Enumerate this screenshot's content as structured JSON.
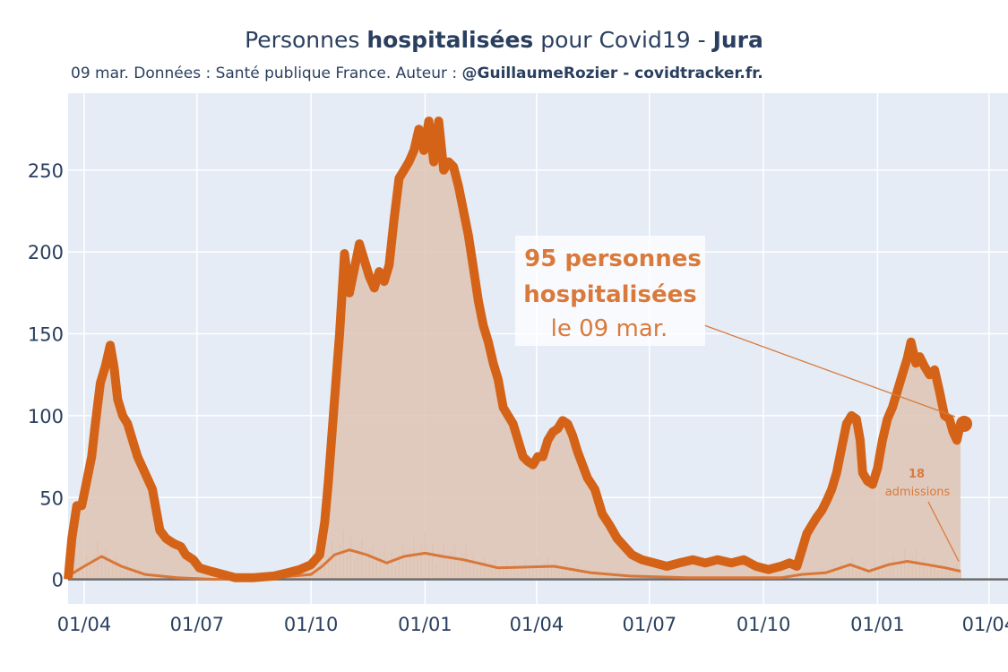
{
  "title": {
    "prefix": "Personnes ",
    "bold1": "hospitalisées",
    "middle": " pour Covid19 - ",
    "bold2": "Jura"
  },
  "subtitle": {
    "text": "09 mar. Données : Santé publique France. Auteur : ",
    "bold": "@GuillaumeRozier - covidtracker.fr."
  },
  "annotation": {
    "line1": "95 personnes",
    "line2": "hospitalisées",
    "line3": "le 09 mar."
  },
  "admissions_annotation": {
    "value": "18",
    "label": "admissions"
  },
  "colors": {
    "main_line": "#d46318",
    "fill": "#dfc4b3",
    "admissions": "#d9773a",
    "background": "#e5ecf6",
    "annotation_text": "#d97a3c"
  },
  "chart_data": {
    "type": "area",
    "xlabel": "",
    "ylabel": "",
    "ylim": [
      -15,
      297
    ],
    "xlim": [
      "2020-03-19",
      "2022-04-17"
    ],
    "yticks": [
      0,
      50,
      100,
      150,
      200,
      250
    ],
    "xtick_labels": [
      "01/04",
      "01/07",
      "01/10",
      "01/01",
      "01/04",
      "01/07",
      "01/10",
      "01/01",
      "01/04"
    ],
    "xtick_dates": [
      "2020-04-01",
      "2020-07-01",
      "2020-10-01",
      "2021-01-01",
      "2021-04-01",
      "2021-07-01",
      "2021-10-01",
      "2022-01-01",
      "2022-04-01"
    ],
    "grid": true,
    "series": [
      {
        "role": "hospitalises",
        "points": [
          [
            "2020-03-19",
            0
          ],
          [
            "2020-03-22",
            25
          ],
          [
            "2020-03-26",
            45
          ],
          [
            "2020-03-30",
            45
          ],
          [
            "2020-04-03",
            60
          ],
          [
            "2020-04-07",
            75
          ],
          [
            "2020-04-10",
            95
          ],
          [
            "2020-04-14",
            120
          ],
          [
            "2020-04-18",
            130
          ],
          [
            "2020-04-22",
            143
          ],
          [
            "2020-04-25",
            130
          ],
          [
            "2020-04-28",
            110
          ],
          [
            "2020-05-02",
            100
          ],
          [
            "2020-05-06",
            95
          ],
          [
            "2020-05-10",
            85
          ],
          [
            "2020-05-14",
            75
          ],
          [
            "2020-05-20",
            65
          ],
          [
            "2020-05-26",
            55
          ],
          [
            "2020-06-01",
            30
          ],
          [
            "2020-06-06",
            25
          ],
          [
            "2020-06-12",
            22
          ],
          [
            "2020-06-18",
            20
          ],
          [
            "2020-06-22",
            15
          ],
          [
            "2020-06-28",
            12
          ],
          [
            "2020-07-03",
            7
          ],
          [
            "2020-07-12",
            5
          ],
          [
            "2020-07-22",
            3
          ],
          [
            "2020-08-01",
            1
          ],
          [
            "2020-08-15",
            1
          ],
          [
            "2020-09-01",
            2
          ],
          [
            "2020-09-12",
            4
          ],
          [
            "2020-09-22",
            6
          ],
          [
            "2020-10-01",
            9
          ],
          [
            "2020-10-08",
            15
          ],
          [
            "2020-10-12",
            35
          ],
          [
            "2020-10-15",
            60
          ],
          [
            "2020-10-20",
            110
          ],
          [
            "2020-10-24",
            150
          ],
          [
            "2020-10-28",
            199
          ],
          [
            "2020-11-01",
            175
          ],
          [
            "2020-11-05",
            190
          ],
          [
            "2020-11-09",
            205
          ],
          [
            "2020-11-13",
            195
          ],
          [
            "2020-11-17",
            185
          ],
          [
            "2020-11-21",
            178
          ],
          [
            "2020-11-25",
            188
          ],
          [
            "2020-11-29",
            182
          ],
          [
            "2020-12-03",
            192
          ],
          [
            "2020-12-07",
            220
          ],
          [
            "2020-12-11",
            245
          ],
          [
            "2020-12-15",
            250
          ],
          [
            "2020-12-19",
            255
          ],
          [
            "2020-12-23",
            262
          ],
          [
            "2020-12-27",
            275
          ],
          [
            "2020-12-31",
            262
          ],
          [
            "2021-01-04",
            280
          ],
          [
            "2021-01-08",
            255
          ],
          [
            "2021-01-12",
            280
          ],
          [
            "2021-01-16",
            250
          ],
          [
            "2021-01-20",
            255
          ],
          [
            "2021-01-24",
            252
          ],
          [
            "2021-01-28",
            240
          ],
          [
            "2021-02-01",
            225
          ],
          [
            "2021-02-05",
            210
          ],
          [
            "2021-02-09",
            190
          ],
          [
            "2021-02-13",
            170
          ],
          [
            "2021-02-17",
            155
          ],
          [
            "2021-02-21",
            145
          ],
          [
            "2021-02-25",
            132
          ],
          [
            "2021-03-01",
            122
          ],
          [
            "2021-03-05",
            105
          ],
          [
            "2021-03-09",
            100
          ],
          [
            "2021-03-13",
            95
          ],
          [
            "2021-03-17",
            85
          ],
          [
            "2021-03-21",
            75
          ],
          [
            "2021-03-25",
            72
          ],
          [
            "2021-03-29",
            70
          ],
          [
            "2021-04-02",
            75
          ],
          [
            "2021-04-06",
            75
          ],
          [
            "2021-04-10",
            85
          ],
          [
            "2021-04-14",
            90
          ],
          [
            "2021-04-18",
            92
          ],
          [
            "2021-04-22",
            97
          ],
          [
            "2021-04-26",
            95
          ],
          [
            "2021-04-30",
            88
          ],
          [
            "2021-05-04",
            78
          ],
          [
            "2021-05-08",
            70
          ],
          [
            "2021-05-12",
            62
          ],
          [
            "2021-05-18",
            55
          ],
          [
            "2021-05-24",
            40
          ],
          [
            "2021-05-30",
            33
          ],
          [
            "2021-06-05",
            25
          ],
          [
            "2021-06-11",
            20
          ],
          [
            "2021-06-17",
            15
          ],
          [
            "2021-06-25",
            12
          ],
          [
            "2021-07-05",
            10
          ],
          [
            "2021-07-15",
            8
          ],
          [
            "2021-07-25",
            10
          ],
          [
            "2021-08-05",
            12
          ],
          [
            "2021-08-15",
            10
          ],
          [
            "2021-08-25",
            12
          ],
          [
            "2021-09-05",
            10
          ],
          [
            "2021-09-15",
            12
          ],
          [
            "2021-09-25",
            8
          ],
          [
            "2021-10-05",
            6
          ],
          [
            "2021-10-15",
            8
          ],
          [
            "2021-10-22",
            10
          ],
          [
            "2021-10-28",
            8
          ],
          [
            "2021-11-01",
            18
          ],
          [
            "2021-11-05",
            28
          ],
          [
            "2021-11-09",
            33
          ],
          [
            "2021-11-13",
            38
          ],
          [
            "2021-11-17",
            42
          ],
          [
            "2021-11-21",
            48
          ],
          [
            "2021-11-25",
            55
          ],
          [
            "2021-11-29",
            65
          ],
          [
            "2021-12-03",
            80
          ],
          [
            "2021-12-07",
            95
          ],
          [
            "2021-12-11",
            100
          ],
          [
            "2021-12-15",
            98
          ],
          [
            "2021-12-18",
            85
          ],
          [
            "2021-12-20",
            65
          ],
          [
            "2021-12-24",
            60
          ],
          [
            "2021-12-28",
            58
          ],
          [
            "2022-01-01",
            68
          ],
          [
            "2022-01-05",
            85
          ],
          [
            "2022-01-09",
            98
          ],
          [
            "2022-01-13",
            105
          ],
          [
            "2022-01-17",
            115
          ],
          [
            "2022-01-21",
            125
          ],
          [
            "2022-01-25",
            135
          ],
          [
            "2022-01-28",
            145
          ],
          [
            "2022-02-01",
            132
          ],
          [
            "2022-02-04",
            136
          ],
          [
            "2022-02-08",
            130
          ],
          [
            "2022-02-12",
            125
          ],
          [
            "2022-02-16",
            128
          ],
          [
            "2022-02-20",
            115
          ],
          [
            "2022-02-24",
            100
          ],
          [
            "2022-02-28",
            98
          ],
          [
            "2022-03-03",
            90
          ],
          [
            "2022-03-06",
            85
          ],
          [
            "2022-03-09",
            95
          ]
        ]
      },
      {
        "role": "admissions",
        "points": [
          [
            "2020-03-19",
            2
          ],
          [
            "2020-04-01",
            8
          ],
          [
            "2020-04-15",
            14
          ],
          [
            "2020-05-01",
            8
          ],
          [
            "2020-05-20",
            3
          ],
          [
            "2020-06-15",
            1
          ],
          [
            "2020-07-15",
            0
          ],
          [
            "2020-09-01",
            1
          ],
          [
            "2020-10-01",
            3
          ],
          [
            "2020-10-10",
            8
          ],
          [
            "2020-10-20",
            15
          ],
          [
            "2020-11-01",
            18
          ],
          [
            "2020-11-15",
            15
          ],
          [
            "2020-12-01",
            10
          ],
          [
            "2020-12-15",
            14
          ],
          [
            "2021-01-01",
            16
          ],
          [
            "2021-01-15",
            14
          ],
          [
            "2021-02-01",
            12
          ],
          [
            "2021-03-01",
            7
          ],
          [
            "2021-04-15",
            8
          ],
          [
            "2021-05-15",
            4
          ],
          [
            "2021-06-15",
            2
          ],
          [
            "2021-08-01",
            1
          ],
          [
            "2021-09-15",
            1
          ],
          [
            "2021-10-15",
            1
          ],
          [
            "2021-11-01",
            3
          ],
          [
            "2021-11-20",
            4
          ],
          [
            "2021-12-10",
            9
          ],
          [
            "2021-12-25",
            5
          ],
          [
            "2022-01-10",
            9
          ],
          [
            "2022-01-25",
            11
          ],
          [
            "2022-02-10",
            9
          ],
          [
            "2022-02-25",
            7
          ],
          [
            "2022-03-09",
            5
          ]
        ]
      }
    ],
    "last_value": {
      "date": "2022-03-09",
      "value": 95
    }
  }
}
